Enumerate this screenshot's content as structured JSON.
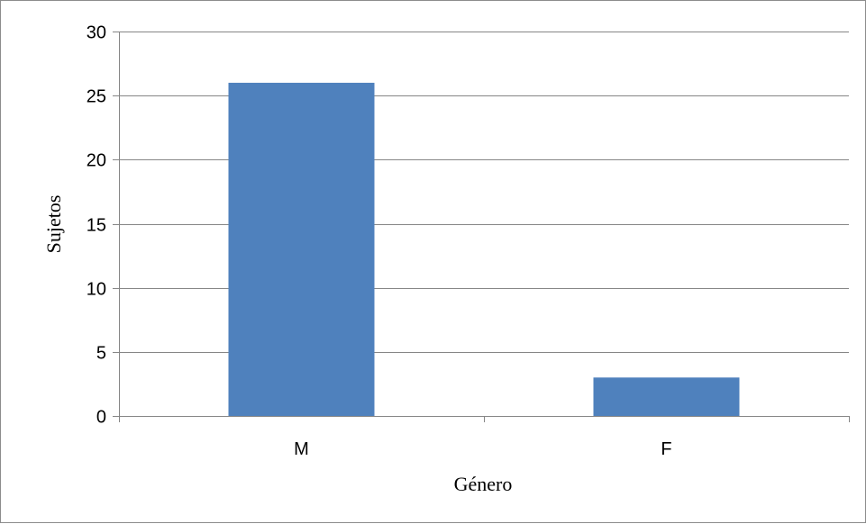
{
  "chart_data": {
    "type": "bar",
    "title": "",
    "categories": [
      "M",
      "F"
    ],
    "values": [
      26,
      3
    ],
    "xlabel": "Género",
    "ylabel": "Sujetos",
    "ylim": [
      0,
      30
    ],
    "yticks": [
      0,
      5,
      10,
      15,
      20,
      25,
      30
    ],
    "grid": true,
    "legend": "none",
    "bar_color": "#4f81bd",
    "grid_color": "#868686"
  }
}
